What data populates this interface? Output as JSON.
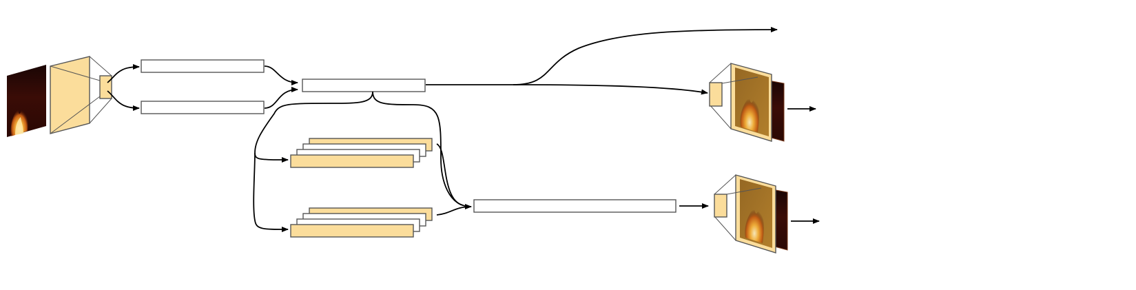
{
  "colors": {
    "accent_yellow": "#fbdd9b",
    "box_outline": "#555555",
    "arrow": "#000000",
    "fire_dark": "#1a0605",
    "fire_bright": "#f6b33c"
  },
  "diagram": {
    "nodes": [
      {
        "id": "input-frame",
        "kind": "image",
        "depicts": "fire-image"
      },
      {
        "id": "encoder",
        "kind": "trapezoid-block"
      },
      {
        "id": "upper-vector",
        "kind": "vector-box"
      },
      {
        "id": "lower-vector",
        "kind": "vector-box"
      },
      {
        "id": "combined-vector",
        "kind": "vector-box"
      },
      {
        "id": "upper-stack",
        "kind": "stacked-boxes",
        "count": 4
      },
      {
        "id": "lower-stack",
        "kind": "stacked-boxes",
        "count": 4
      },
      {
        "id": "long-vector",
        "kind": "vector-box"
      },
      {
        "id": "decoder-top",
        "kind": "trapezoid-block-with-output",
        "depicts": "fire-image"
      },
      {
        "id": "decoder-bottom",
        "kind": "trapezoid-block-with-output",
        "depicts": "fire-image"
      }
    ],
    "edges": [
      {
        "from": "encoder",
        "to": "upper-vector"
      },
      {
        "from": "encoder",
        "to": "lower-vector"
      },
      {
        "from": "upper-vector",
        "to": "combined-vector"
      },
      {
        "from": "lower-vector",
        "to": "combined-vector"
      },
      {
        "from": "combined-vector",
        "to": "top-right-output"
      },
      {
        "from": "combined-vector",
        "to": "decoder-top"
      },
      {
        "from": "combined-vector",
        "to": "upper-stack"
      },
      {
        "from": "combined-vector",
        "to": "lower-stack"
      },
      {
        "from": "combined-vector",
        "to": "long-vector"
      },
      {
        "from": "upper-stack",
        "to": "long-vector"
      },
      {
        "from": "lower-stack",
        "to": "long-vector"
      },
      {
        "from": "long-vector",
        "to": "decoder-bottom"
      },
      {
        "from": "decoder-top",
        "to": "output-top"
      },
      {
        "from": "decoder-bottom",
        "to": "output-bottom"
      }
    ]
  }
}
